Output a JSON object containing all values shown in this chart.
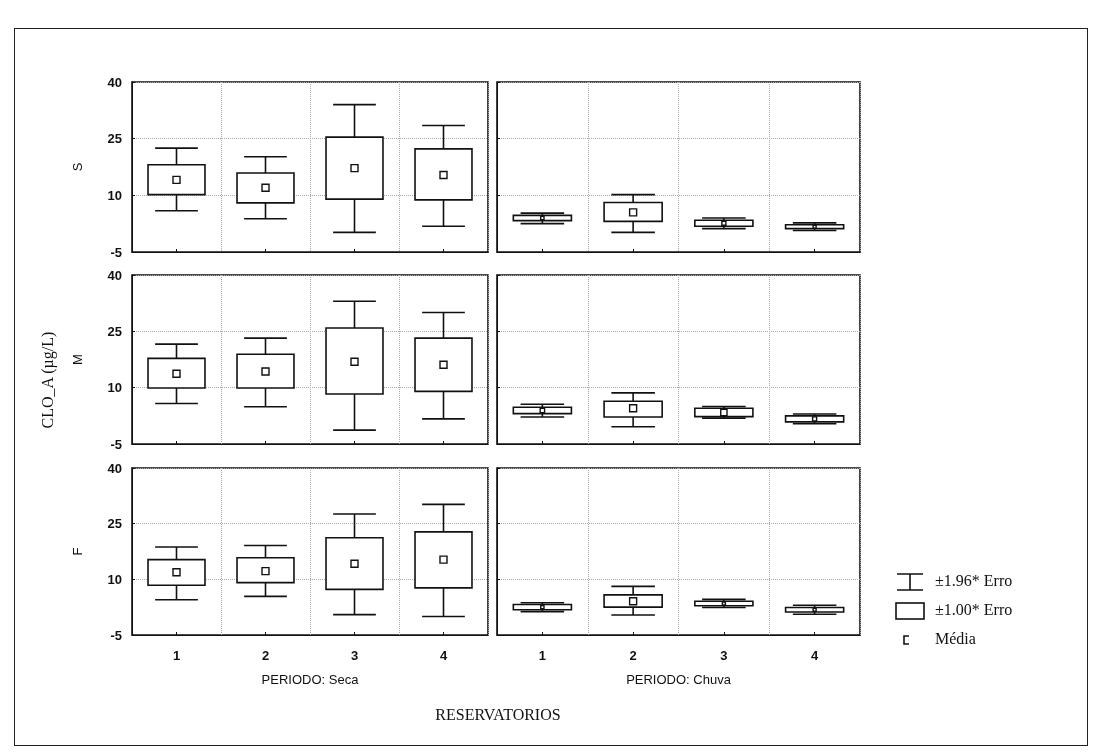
{
  "chart_data": [
    {
      "type": "box",
      "ylabel": "S",
      "categories": [
        "1",
        "2",
        "3",
        "4"
      ],
      "ylim": [
        -5,
        40
      ],
      "yticks": [
        -5,
        10,
        25,
        40
      ],
      "grid": true,
      "tick_labels": "y",
      "annotations": [
        "CLO_A   (µg/L)",
        "RESERVATORIOS",
        "±1.96* Erro",
        "±1.00* Erro",
        "Média"
      ],
      "boxes": [
        {
          "low": 5.9,
          "q1": 10.2,
          "median": 14.1,
          "q3": 18.1,
          "high": 22.5
        },
        {
          "low": 3.8,
          "q1": 8.0,
          "median": 12.0,
          "q3": 15.9,
          "high": 20.2
        },
        {
          "low": 0.2,
          "q1": 9.0,
          "median": 17.2,
          "q3": 25.4,
          "high": 34.0
        },
        {
          "low": 1.8,
          "q1": 8.8,
          "median": 15.4,
          "q3": 22.3,
          "high": 28.5
        }
      ]
    },
    {
      "type": "box",
      "categories": [
        "1",
        "2",
        "3",
        "4"
      ],
      "ylim": [
        -5,
        40
      ],
      "yticks": [
        -5,
        10,
        25,
        40
      ],
      "grid": true,
      "tick_labels": false,
      "boxes": [
        {
          "low": 2.5,
          "q1": 3.3,
          "median": 4.0,
          "q3": 4.7,
          "high": 5.3
        },
        {
          "low": 0.2,
          "q1": 3.1,
          "median": 5.5,
          "q3": 8.1,
          "high": 10.2
        },
        {
          "low": 1.2,
          "q1": 1.8,
          "median": 2.6,
          "q3": 3.4,
          "high": 4.0
        },
        {
          "low": 0.7,
          "q1": 1.2,
          "median": 1.7,
          "q3": 2.2,
          "high": 2.7
        }
      ]
    },
    {
      "type": "box",
      "ylabel": "M",
      "categories": [
        "1",
        "2",
        "3",
        "4"
      ],
      "ylim": [
        -5,
        40
      ],
      "yticks": [
        -5,
        10,
        25,
        40
      ],
      "grid": true,
      "tick_labels": "y",
      "boxes": [
        {
          "low": 5.8,
          "q1": 9.9,
          "median": 13.7,
          "q3": 17.8,
          "high": 21.6
        },
        {
          "low": 4.9,
          "q1": 9.9,
          "median": 14.3,
          "q3": 18.9,
          "high": 23.2
        },
        {
          "low": -1.3,
          "q1": 8.3,
          "median": 16.9,
          "q3": 25.9,
          "high": 33.0
        },
        {
          "low": 1.7,
          "q1": 9.0,
          "median": 16.1,
          "q3": 23.2,
          "high": 30.0
        }
      ]
    },
    {
      "type": "box",
      "categories": [
        "1",
        "2",
        "3",
        "4"
      ],
      "ylim": [
        -5,
        40
      ],
      "yticks": [
        -5,
        10,
        25,
        40
      ],
      "grid": true,
      "tick_labels": false,
      "boxes": [
        {
          "low": 2.2,
          "q1": 3.1,
          "median": 3.9,
          "q3": 4.8,
          "high": 5.6
        },
        {
          "low": -0.4,
          "q1": 2.2,
          "median": 4.5,
          "q3": 6.4,
          "high": 8.6
        },
        {
          "low": 1.9,
          "q1": 2.3,
          "median": 3.4,
          "q3": 4.5,
          "high": 5.0
        },
        {
          "low": 0.4,
          "q1": 0.9,
          "median": 1.7,
          "q3": 2.5,
          "high": 3.0
        }
      ]
    },
    {
      "type": "box",
      "ylabel": "F",
      "xlabel": "PERIODO: Seca",
      "categories": [
        "1",
        "2",
        "3",
        "4"
      ],
      "ylim": [
        -5,
        40
      ],
      "yticks": [
        -5,
        10,
        25,
        40
      ],
      "grid": true,
      "boxes": [
        {
          "low": 4.5,
          "q1": 8.4,
          "median": 11.9,
          "q3": 15.3,
          "high": 18.7
        },
        {
          "low": 5.4,
          "q1": 9.1,
          "median": 12.2,
          "q3": 15.8,
          "high": 19.1
        },
        {
          "low": 0.5,
          "q1": 7.3,
          "median": 14.2,
          "q3": 21.2,
          "high": 27.6
        },
        {
          "low": 0.0,
          "q1": 7.7,
          "median": 15.3,
          "q3": 22.8,
          "high": 30.2
        }
      ]
    },
    {
      "type": "box",
      "xlabel": "PERIODO: Chuva",
      "categories": [
        "1",
        "2",
        "3",
        "4"
      ],
      "ylim": [
        -5,
        40
      ],
      "yticks": [
        -5,
        10,
        25,
        40
      ],
      "grid": true,
      "tick_labels": "x",
      "boxes": [
        {
          "low": 1.3,
          "q1": 1.8,
          "median": 2.5,
          "q3": 3.2,
          "high": 3.7
        },
        {
          "low": 0.4,
          "q1": 2.5,
          "median": 4.1,
          "q3": 5.8,
          "high": 8.1
        },
        {
          "low": 2.4,
          "q1": 2.9,
          "median": 3.5,
          "q3": 4.1,
          "high": 4.6
        },
        {
          "low": 0.6,
          "q1": 1.2,
          "median": 1.8,
          "q3": 2.4,
          "high": 3.0
        }
      ]
    }
  ]
}
